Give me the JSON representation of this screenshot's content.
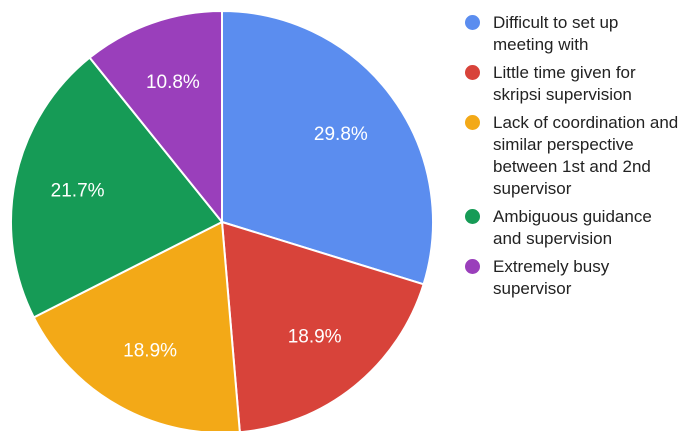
{
  "chart_data": {
    "type": "pie",
    "title": "",
    "legend_position": "right",
    "slices": [
      {
        "label": "Difficult to set up meeting with",
        "value": 29.8,
        "display": "29.8%",
        "color": "#5b8def"
      },
      {
        "label": "Little time given for skripsi supervision",
        "value": 18.9,
        "display": "18.9%",
        "color": "#d8433a"
      },
      {
        "label": "Lack of coordination and similar perspective between 1st and 2nd supervisor",
        "value": 18.9,
        "display": "18.9%",
        "color": "#f3a917"
      },
      {
        "label": "Ambiguous guidance and supervision",
        "value": 21.7,
        "display": "21.7%",
        "color": "#169b56"
      },
      {
        "label": "Extremely busy supervisor",
        "value": 10.8,
        "display": "10.8%",
        "color": "#9a3fbb"
      }
    ]
  }
}
